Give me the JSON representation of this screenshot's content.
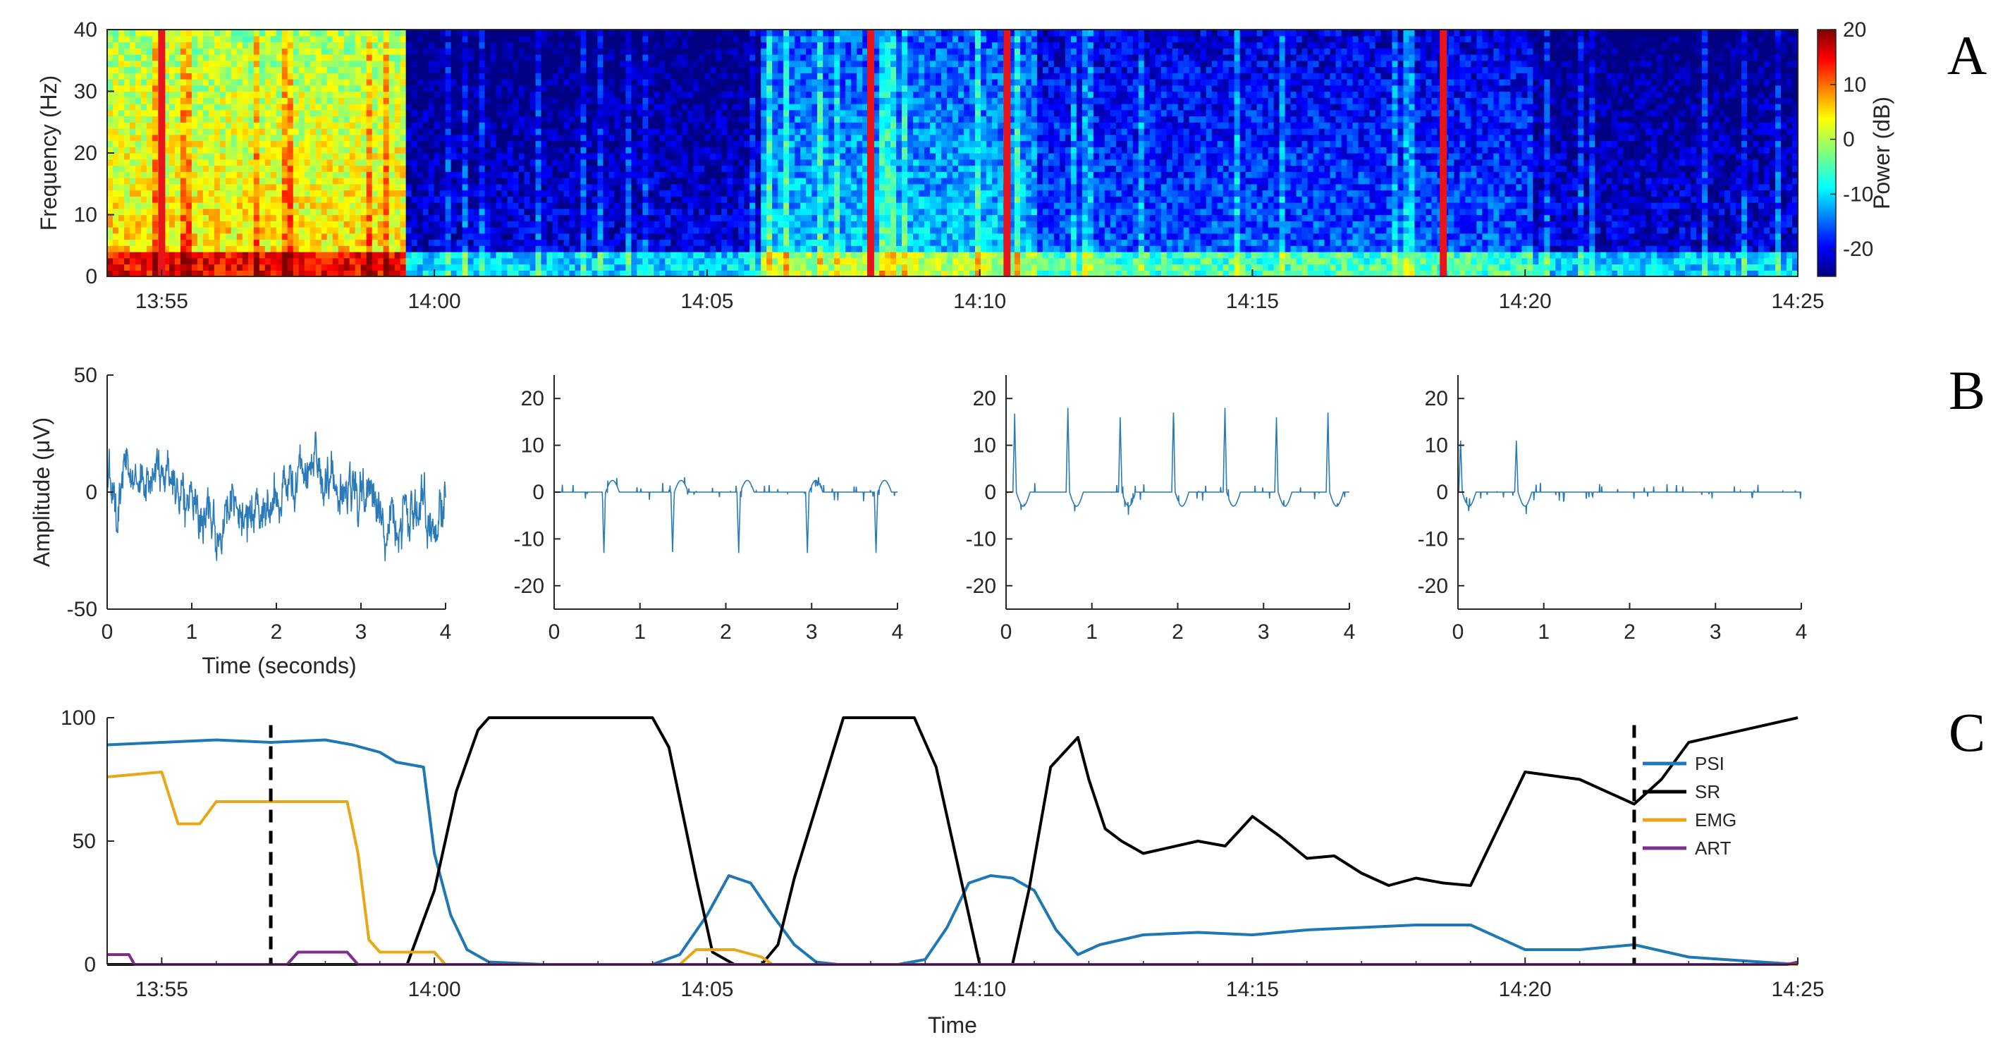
{
  "colors": {
    "psi": "#1f77b4",
    "sr": "#000000",
    "emg": "#e6a817",
    "art": "#7e2f8e",
    "trace_b": "#2a7ab8",
    "event_marker": "#e8141c",
    "axis": "#262626"
  },
  "chart_data": [
    {
      "panel_letter": "A",
      "type": "heatmap",
      "title": "",
      "xlabel": "",
      "ylabel": "Frequency (Hz)",
      "ylim": [
        0,
        40
      ],
      "yticks": [
        "0",
        "10",
        "20",
        "30",
        "40"
      ],
      "xlim_minutes": [
        54,
        85
      ],
      "xticks": [
        "13:55",
        "14:00",
        "14:05",
        "14:10",
        "14:15",
        "14:20",
        "14:25"
      ],
      "colorbar": {
        "label": "Power (dB)",
        "range": [
          -25,
          20
        ],
        "ticks": [
          "-20",
          "-10",
          "0",
          "10",
          "20"
        ],
        "colormap": "jet"
      },
      "regions": [
        {
          "start": "13:54",
          "end": "13:59.5",
          "level_db": 5,
          "description_level": "high broadband"
        },
        {
          "start": "13:59.5",
          "end": "14:06",
          "level_db": -20,
          "description_level": "low"
        },
        {
          "start": "14:06",
          "end": "14:11",
          "level_db": -10,
          "description_level": "moderate"
        },
        {
          "start": "14:11",
          "end": "14:20",
          "level_db": -15,
          "description_level": "intermittent"
        },
        {
          "start": "14:20",
          "end": "14:25",
          "level_db": -20,
          "description_level": "low"
        }
      ],
      "event_markers": [
        "13:55",
        "14:08",
        "14:10.5",
        "14:18.5"
      ]
    },
    {
      "panel_letter": "B",
      "type": "line",
      "title": "",
      "xlabel": "Time (seconds)",
      "ylabel": "Amplitude (μV)",
      "subplots": [
        {
          "xlim": [
            0,
            4
          ],
          "ylim": [
            -50,
            50
          ],
          "xticks": [
            "0",
            "1",
            "2",
            "3",
            "4"
          ],
          "yticks": [
            "-50",
            "0",
            "50"
          ],
          "pattern": "continuous EEG",
          "spikes": []
        },
        {
          "xlim": [
            0,
            4
          ],
          "ylim": [
            -25,
            25
          ],
          "xticks": [
            "0",
            "1",
            "2",
            "3",
            "4"
          ],
          "yticks": [
            "-20",
            "-10",
            "0",
            "10",
            "20"
          ],
          "pattern": "burst suppression",
          "spikes": [
            {
              "t": 0.58,
              "a": -13
            },
            {
              "t": 1.38,
              "a": -13
            },
            {
              "t": 2.15,
              "a": -13
            },
            {
              "t": 2.95,
              "a": -13
            },
            {
              "t": 3.75,
              "a": -13
            }
          ]
        },
        {
          "xlim": [
            0,
            4
          ],
          "ylim": [
            -25,
            25
          ],
          "xticks": [
            "0",
            "1",
            "2",
            "3",
            "4"
          ],
          "yticks": [
            "-20",
            "-10",
            "0",
            "10",
            "20"
          ],
          "pattern": "periodic discharges",
          "spikes": [
            {
              "t": 0.1,
              "a": 16
            },
            {
              "t": 0.72,
              "a": 18
            },
            {
              "t": 1.33,
              "a": 16
            },
            {
              "t": 1.95,
              "a": 17
            },
            {
              "t": 2.55,
              "a": 18
            },
            {
              "t": 3.15,
              "a": 16
            },
            {
              "t": 3.75,
              "a": 17
            }
          ]
        },
        {
          "xlim": [
            0,
            4
          ],
          "ylim": [
            -25,
            25
          ],
          "xticks": [
            "0",
            "1",
            "2",
            "3",
            "4"
          ],
          "yticks": [
            "-20",
            "-10",
            "0",
            "10",
            "20"
          ],
          "pattern": "near suppression",
          "spikes": [
            {
              "t": 0.03,
              "a": 11
            },
            {
              "t": 0.68,
              "a": 11
            }
          ]
        }
      ]
    },
    {
      "panel_letter": "C",
      "type": "line",
      "title": "",
      "xlabel": "Time",
      "ylabel": "",
      "xlim_minutes": [
        54,
        85
      ],
      "ylim": [
        0,
        100
      ],
      "xticks": [
        "13:55",
        "14:00",
        "14:05",
        "14:10",
        "14:15",
        "14:20",
        "14:25"
      ],
      "yticks": [
        "0",
        "50",
        "100"
      ],
      "legend_placement": "right",
      "dashed_markers": [
        "13:57",
        "14:22"
      ],
      "series": [
        {
          "name": "PSI",
          "x": [
            54,
            55,
            56,
            57,
            58,
            58.5,
            59,
            59.3,
            59.8,
            60,
            60.3,
            60.6,
            61,
            62,
            63,
            64,
            64.5,
            65,
            65.4,
            65.8,
            66.2,
            66.6,
            67,
            67.4,
            68,
            68.5,
            69,
            69.4,
            69.8,
            70.2,
            70.6,
            71,
            71.4,
            71.8,
            72.2,
            73,
            74,
            75,
            76,
            77,
            78,
            79,
            80,
            81,
            82,
            83,
            85
          ],
          "y": [
            89,
            90,
            91,
            90,
            91,
            89,
            86,
            82,
            80,
            45,
            20,
            6,
            1,
            0,
            0,
            0,
            4,
            20,
            36,
            33,
            20,
            8,
            1,
            0,
            0,
            0,
            2,
            15,
            33,
            36,
            35,
            30,
            14,
            4,
            8,
            12,
            13,
            12,
            14,
            15,
            16,
            16,
            6,
            6,
            8,
            3,
            0
          ]
        },
        {
          "name": "SR",
          "x": [
            54,
            59.5,
            60,
            60.4,
            60.8,
            61,
            63,
            64,
            64.3,
            64.8,
            65.1,
            65.5,
            66,
            66.3,
            66.6,
            67.5,
            68.8,
            69.2,
            70,
            70.6,
            70.9,
            71.3,
            71.8,
            72,
            72.3,
            72.6,
            73,
            74,
            74.5,
            75,
            75.5,
            76,
            76.5,
            77,
            77.5,
            78,
            78.5,
            79,
            80,
            81,
            82,
            82.5,
            83,
            85
          ],
          "y": [
            0,
            0,
            30,
            70,
            95,
            100,
            100,
            100,
            88,
            35,
            5,
            0,
            0,
            8,
            35,
            100,
            100,
            80,
            0,
            0,
            30,
            80,
            92,
            75,
            55,
            50,
            45,
            50,
            48,
            60,
            52,
            43,
            44,
            37,
            32,
            35,
            33,
            32,
            78,
            75,
            65,
            75,
            90,
            100
          ]
        },
        {
          "name": "EMG",
          "x": [
            54,
            55,
            55.3,
            55.7,
            56,
            57,
            58,
            58.4,
            58.6,
            58.8,
            59,
            60,
            60.2,
            64.5,
            64.8,
            65.5,
            66,
            66.2,
            85
          ],
          "y": [
            76,
            78,
            57,
            57,
            66,
            66,
            66,
            66,
            45,
            10,
            5,
            5,
            0,
            0,
            6,
            6,
            3,
            0,
            0
          ]
        },
        {
          "name": "ART",
          "x": [
            54,
            54.4,
            54.5,
            57.3,
            57.5,
            58.4,
            58.6,
            84.8,
            85
          ],
          "y": [
            4,
            4,
            0,
            0,
            5,
            5,
            0,
            0,
            1
          ]
        }
      ]
    }
  ]
}
